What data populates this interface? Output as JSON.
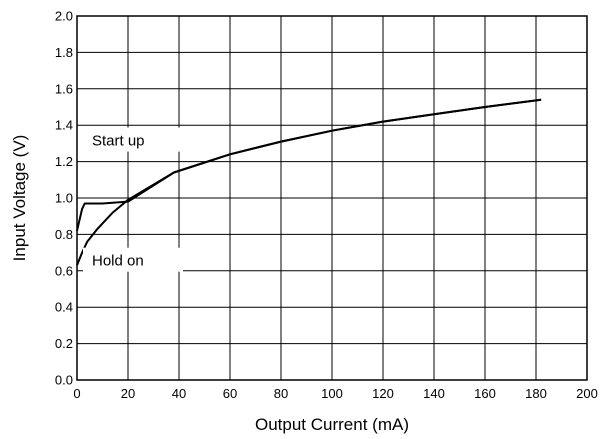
{
  "chart_data": {
    "type": "line",
    "title": "",
    "xlabel": "Output Current (mA)",
    "ylabel": "Input Voltage (V)",
    "xlim": [
      0,
      200
    ],
    "ylim": [
      0,
      2.0
    ],
    "grid": true,
    "xticks": [
      "0",
      "20",
      "40",
      "60",
      "80",
      "100",
      "120",
      "140",
      "160",
      "180",
      "200"
    ],
    "yticks": [
      "0.0",
      "0.2",
      "0.4",
      "0.6",
      "0.8",
      "1.0",
      "1.2",
      "1.4",
      "1.6",
      "1.8",
      "2.0"
    ],
    "annotations": [
      {
        "text": "Start up",
        "x": 20,
        "y": 1.31
      },
      {
        "text": "Hold on",
        "x": 20,
        "y": 0.65
      }
    ],
    "series": [
      {
        "x": [
          0,
          2,
          3,
          10,
          20,
          38,
          60,
          80,
          100,
          120,
          140,
          160,
          182
        ],
        "y": [
          0.82,
          0.94,
          0.97,
          0.97,
          0.98,
          1.14,
          1.24,
          1.31,
          1.37,
          1.42,
          1.46,
          1.5,
          1.54
        ]
      },
      {
        "x": [
          0,
          2,
          4,
          8,
          14,
          20,
          38,
          60,
          80,
          100,
          120,
          140,
          160,
          182
        ],
        "y": [
          0.63,
          0.7,
          0.76,
          0.83,
          0.92,
          0.99,
          1.14,
          1.24,
          1.31,
          1.37,
          1.42,
          1.46,
          1.5,
          1.54
        ]
      }
    ]
  }
}
